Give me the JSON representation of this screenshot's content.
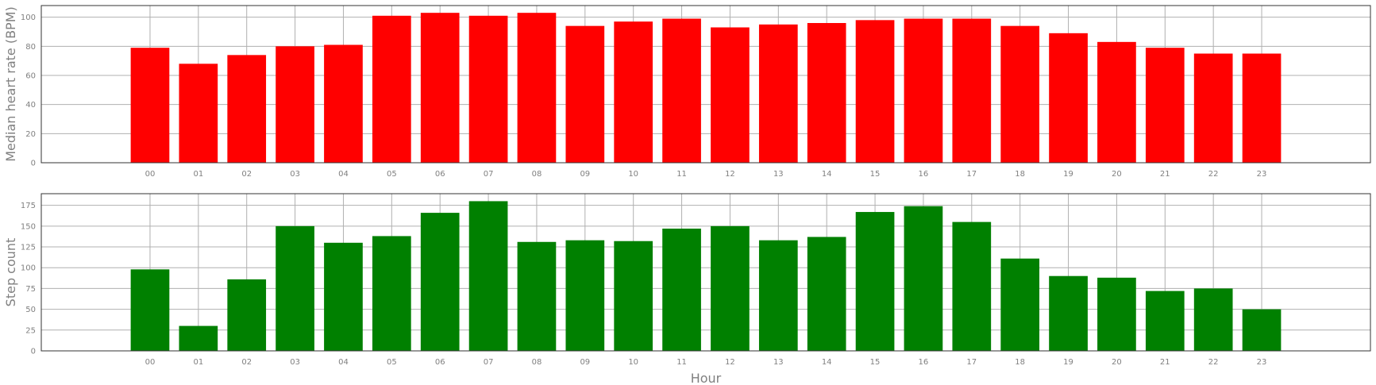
{
  "chart_data": [
    {
      "type": "bar",
      "categories": [
        "00",
        "01",
        "02",
        "03",
        "04",
        "05",
        "06",
        "07",
        "08",
        "09",
        "10",
        "11",
        "12",
        "13",
        "14",
        "15",
        "16",
        "17",
        "18",
        "19",
        "20",
        "21",
        "22",
        "23"
      ],
      "values": [
        79,
        68,
        74,
        80,
        81,
        101,
        103,
        101,
        103,
        94,
        97,
        99,
        93,
        95,
        96,
        98,
        99,
        99,
        94,
        89,
        83,
        79,
        75,
        75
      ],
      "xlabel": "",
      "ylabel": "Median heart rate (BPM)",
      "ylim": [
        0,
        108
      ],
      "yticks": [
        0,
        20,
        40,
        60,
        80,
        100
      ],
      "grid": true,
      "color": "#ff0000"
    },
    {
      "type": "bar",
      "categories": [
        "00",
        "01",
        "02",
        "03",
        "04",
        "05",
        "06",
        "07",
        "08",
        "09",
        "10",
        "11",
        "12",
        "13",
        "14",
        "15",
        "16",
        "17",
        "18",
        "19",
        "20",
        "21",
        "22",
        "23"
      ],
      "values": [
        98,
        30,
        86,
        150,
        130,
        138,
        166,
        180,
        131,
        133,
        132,
        147,
        150,
        133,
        137,
        167,
        174,
        155,
        111,
        90,
        88,
        72,
        75,
        50
      ],
      "xlabel": "Hour",
      "ylabel": "Step count",
      "ylim": [
        0,
        189
      ],
      "yticks": [
        0,
        25,
        50,
        75,
        100,
        125,
        150,
        175
      ],
      "grid": true,
      "color": "#008000"
    }
  ]
}
